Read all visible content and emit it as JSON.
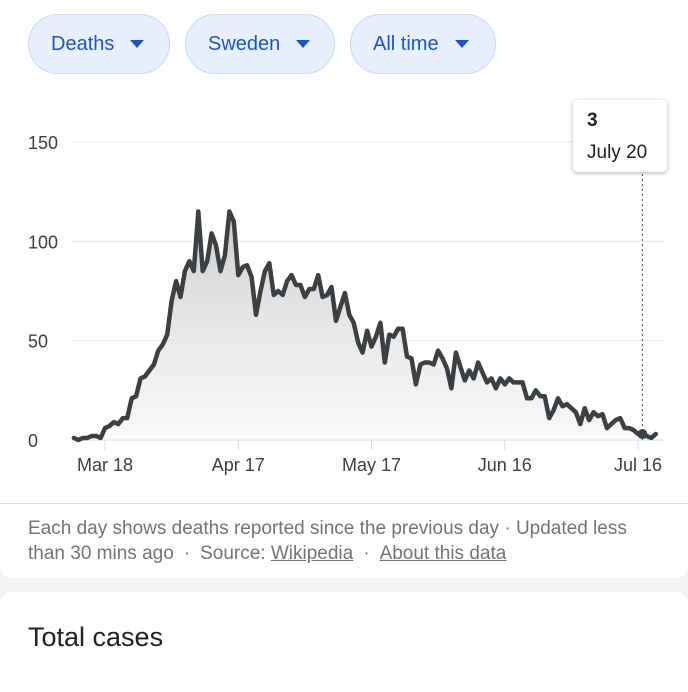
{
  "filters": {
    "metric": "Deaths",
    "region": "Sweden",
    "range": "All time"
  },
  "chart_data": {
    "type": "area",
    "title": "",
    "xlabel": "",
    "ylabel": "",
    "ylim": [
      0,
      150
    ],
    "yticks": [
      "0",
      "50",
      "100",
      "150"
    ],
    "xticks": [
      {
        "label": "Mar 18",
        "date": "2020-03-18"
      },
      {
        "label": "Apr 17",
        "date": "2020-04-17"
      },
      {
        "label": "May 17",
        "date": "2020-05-17"
      },
      {
        "label": "Jun 16",
        "date": "2020-06-16"
      },
      {
        "label": "Jul 16",
        "date": "2020-07-16"
      }
    ],
    "grid": true,
    "line_color": "#3c4043",
    "series": [
      {
        "x": [
          "2020-03-11",
          "2020-03-12",
          "2020-03-13",
          "2020-03-14",
          "2020-03-15",
          "2020-03-16",
          "2020-03-17",
          "2020-03-18",
          "2020-03-19",
          "2020-03-20",
          "2020-03-21",
          "2020-03-22",
          "2020-03-23",
          "2020-03-24",
          "2020-03-25",
          "2020-03-26",
          "2020-03-27",
          "2020-03-28",
          "2020-03-29",
          "2020-03-30",
          "2020-03-31",
          "2020-04-01",
          "2020-04-02",
          "2020-04-03",
          "2020-04-04",
          "2020-04-05",
          "2020-04-06",
          "2020-04-07",
          "2020-04-08",
          "2020-04-09",
          "2020-04-10",
          "2020-04-11",
          "2020-04-12",
          "2020-04-13",
          "2020-04-14",
          "2020-04-15",
          "2020-04-16",
          "2020-04-17",
          "2020-04-18",
          "2020-04-19",
          "2020-04-20",
          "2020-04-21",
          "2020-04-22",
          "2020-04-23",
          "2020-04-24",
          "2020-04-25",
          "2020-04-26",
          "2020-04-27",
          "2020-04-28",
          "2020-04-29",
          "2020-04-30",
          "2020-05-01",
          "2020-05-02",
          "2020-05-03",
          "2020-05-04",
          "2020-05-05",
          "2020-05-06",
          "2020-05-07",
          "2020-05-08",
          "2020-05-09",
          "2020-05-10",
          "2020-05-11",
          "2020-05-12",
          "2020-05-13",
          "2020-05-14",
          "2020-05-15",
          "2020-05-16",
          "2020-05-17",
          "2020-05-18",
          "2020-05-19",
          "2020-05-20",
          "2020-05-21",
          "2020-05-22",
          "2020-05-23",
          "2020-05-24",
          "2020-05-25",
          "2020-05-26",
          "2020-05-27",
          "2020-05-28",
          "2020-05-29",
          "2020-05-30",
          "2020-05-31",
          "2020-06-01",
          "2020-06-02",
          "2020-06-03",
          "2020-06-04",
          "2020-06-05",
          "2020-06-06",
          "2020-06-07",
          "2020-06-08",
          "2020-06-09",
          "2020-06-10",
          "2020-06-11",
          "2020-06-12",
          "2020-06-13",
          "2020-06-14",
          "2020-06-15",
          "2020-06-16",
          "2020-06-17",
          "2020-06-18",
          "2020-06-19",
          "2020-06-20",
          "2020-06-21",
          "2020-06-22",
          "2020-06-23",
          "2020-06-24",
          "2020-06-25",
          "2020-06-26",
          "2020-06-27",
          "2020-06-28",
          "2020-06-29",
          "2020-06-30",
          "2020-07-01",
          "2020-07-02",
          "2020-07-03",
          "2020-07-04",
          "2020-07-05",
          "2020-07-06",
          "2020-07-07",
          "2020-07-08",
          "2020-07-09",
          "2020-07-10",
          "2020-07-11",
          "2020-07-12",
          "2020-07-13",
          "2020-07-14",
          "2020-07-15",
          "2020-07-16",
          "2020-07-17",
          "2020-07-18",
          "2020-07-19",
          "2020-07-20"
        ],
        "values": [
          1,
          0,
          1,
          1,
          2,
          2,
          1,
          6,
          7,
          9,
          8,
          11,
          11,
          21,
          22,
          31,
          32,
          35,
          38,
          45,
          48,
          53,
          70,
          80,
          72,
          85,
          90,
          85,
          115,
          85,
          90,
          104,
          98,
          85,
          93,
          115,
          110,
          83,
          87,
          88,
          82,
          63,
          75,
          85,
          89,
          73,
          75,
          73,
          80,
          83,
          78,
          78,
          72,
          76,
          76,
          83,
          72,
          73,
          77,
          60,
          67,
          74,
          63,
          59,
          49,
          44,
          55,
          47,
          52,
          59,
          39,
          53,
          52,
          56,
          56,
          42,
          41,
          28,
          38,
          39,
          39,
          38,
          45,
          41,
          36,
          26,
          44,
          37,
          30,
          35,
          31,
          39,
          34,
          29,
          31,
          26,
          31,
          28,
          31,
          29,
          29,
          29,
          21,
          21,
          25,
          22,
          22,
          11,
          15,
          21,
          17,
          18,
          16,
          14,
          8,
          16,
          10,
          14,
          12,
          13,
          6,
          8,
          10,
          11,
          6,
          6,
          5,
          3,
          3,
          2,
          1,
          3
        ]
      }
    ],
    "tooltip": {
      "value": "3",
      "date_label": "July 20"
    }
  },
  "footnote": {
    "text": "Each day shows deaths reported since the previous day · Updated less than 30 mins ago",
    "source_label": "Source:",
    "source_link": "Wikipedia",
    "about_link": "About this data"
  },
  "next_card": {
    "title": "Total cases"
  }
}
